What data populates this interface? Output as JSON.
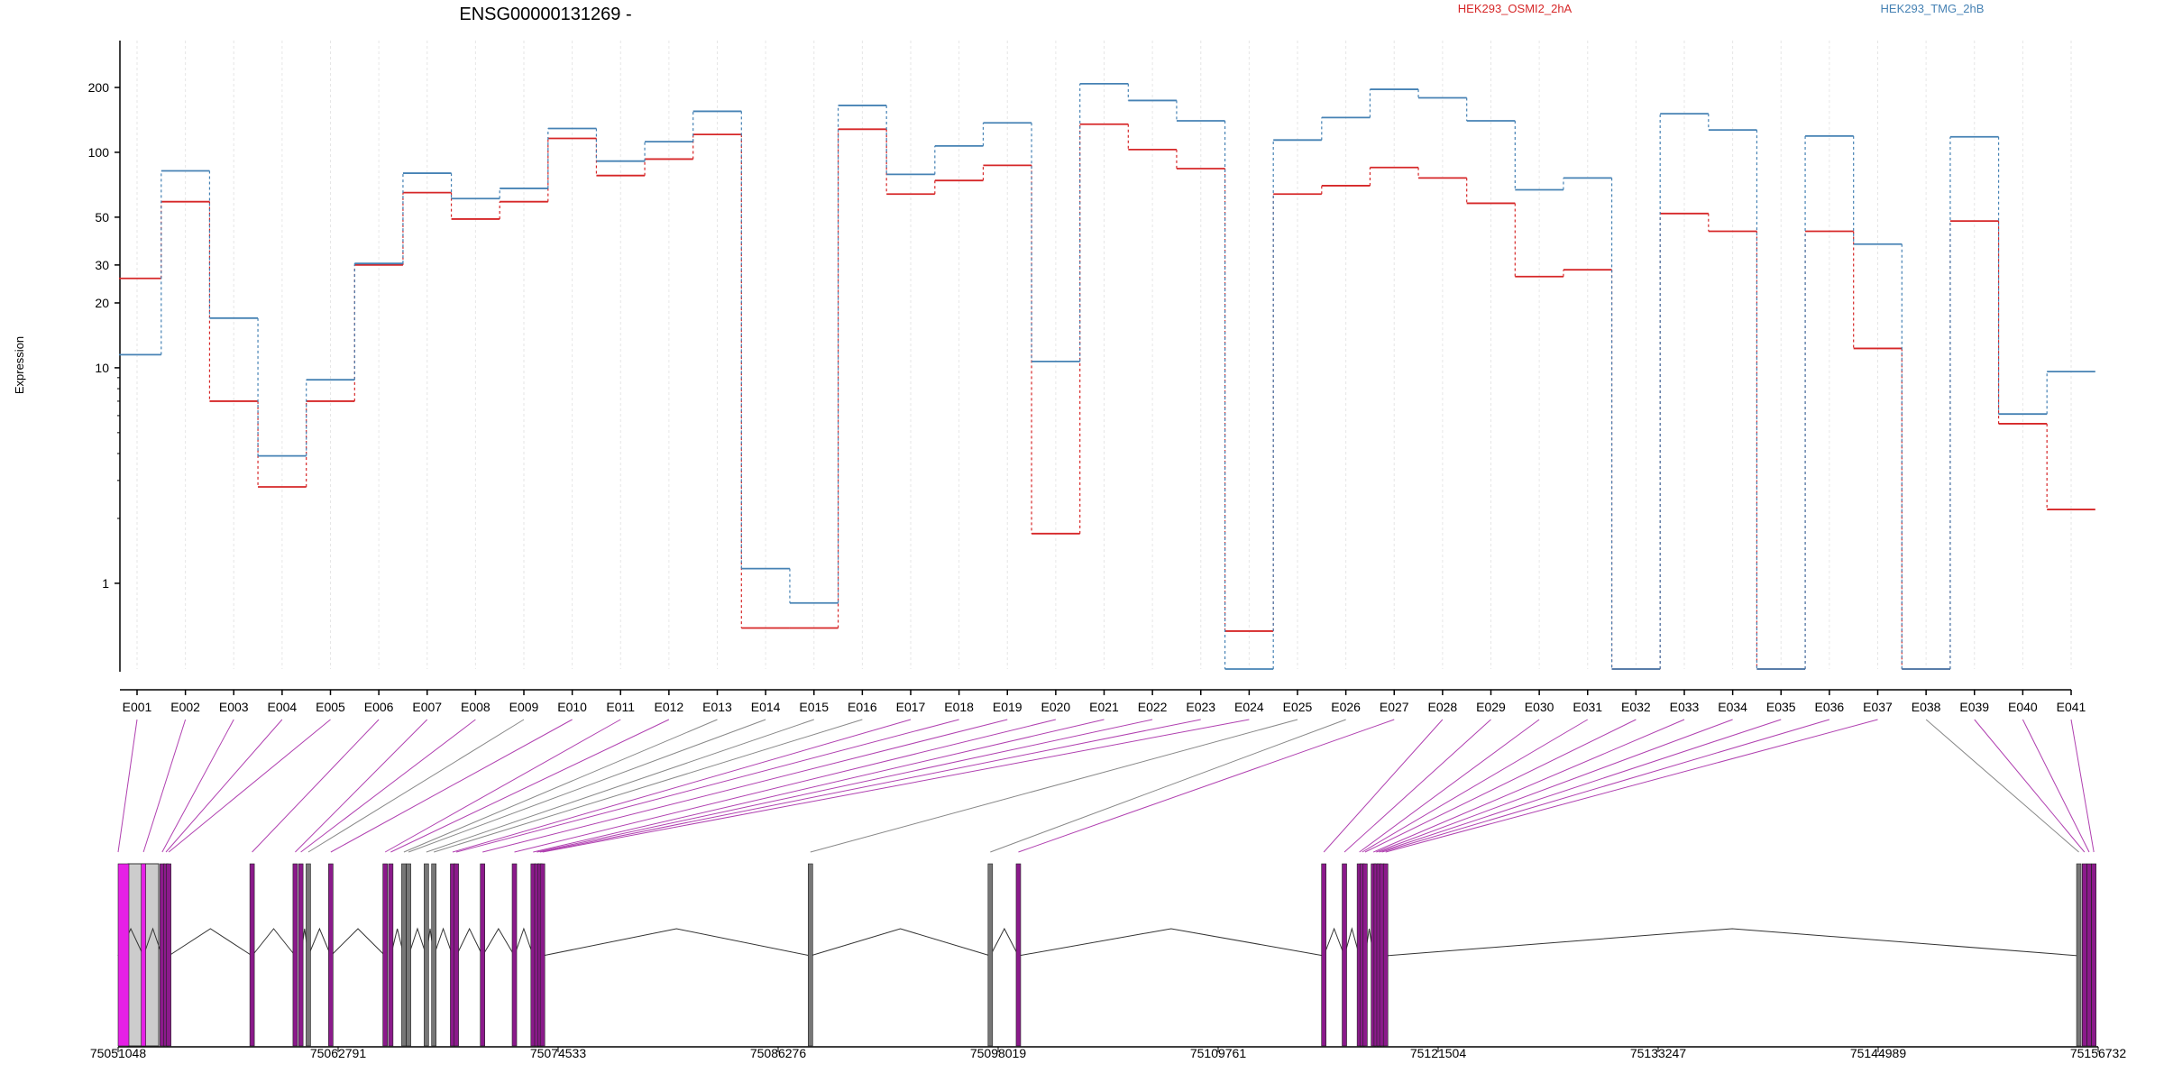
{
  "chart_data": {
    "type": "line",
    "title": "ENSG00000131269 -",
    "ylabel": "Expression",
    "xlabel": "",
    "y_scale": "log",
    "ylim": [
      0.4,
      330
    ],
    "y_ticks": [
      {
        "value": 200,
        "label": "200"
      },
      {
        "value": 100,
        "label": "100"
      },
      {
        "value": 50,
        "label": "50"
      },
      {
        "value": 30,
        "label": "30"
      },
      {
        "value": 20,
        "label": "20"
      },
      {
        "value": 10,
        "label": "10"
      },
      {
        "value": 1,
        "label": "1"
      }
    ],
    "grid": "vertical",
    "categories": [
      "E001",
      "E002",
      "E003",
      "E004",
      "E005",
      "E006",
      "E007",
      "E008",
      "E009",
      "E010",
      "E011",
      "E012",
      "E013",
      "E014",
      "E015",
      "E016",
      "E017",
      "E018",
      "E019",
      "E020",
      "E021",
      "E022",
      "E023",
      "E024",
      "E025",
      "E026",
      "E027",
      "E028",
      "E029",
      "E030",
      "E031",
      "E032",
      "E033",
      "E034",
      "E035",
      "E036",
      "E037",
      "E038",
      "E039",
      "E040",
      "E041"
    ],
    "legend_position": "top",
    "series": [
      {
        "name": "HEK293_OSMI2_2hA",
        "color": "#d62728",
        "values": [
          26,
          59,
          7.0,
          2.8,
          7.0,
          30,
          65,
          49,
          59,
          116,
          78,
          93,
          121,
          0.62,
          0.62,
          128,
          64,
          74,
          87,
          1.7,
          135,
          103,
          84,
          0.6,
          64,
          70,
          85,
          76,
          58,
          26.5,
          28.5,
          0.4,
          52,
          43,
          0.4,
          43,
          12.3,
          0.4,
          48,
          5.5,
          2.2
        ]
      },
      {
        "name": "HEK293_TMG_2hB",
        "color": "#4682b4",
        "values": [
          11.5,
          82,
          17.0,
          3.9,
          8.8,
          30.5,
          80,
          61,
          68,
          129,
          91,
          112,
          155,
          1.17,
          0.81,
          165,
          79,
          107,
          137,
          10.7,
          208,
          174,
          140,
          0.4,
          114,
          145,
          196,
          179,
          140,
          67,
          76,
          0.4,
          151,
          127,
          0.4,
          119,
          37.5,
          0.4,
          118,
          6.1,
          9.6
        ]
      }
    ],
    "genome": {
      "position_ticks": [
        "75051048",
        "75062791",
        "75074533",
        "75086276",
        "75098019",
        "75109761",
        "75121504",
        "75133247",
        "75144989",
        "75156732"
      ],
      "position_range": [
        75051048,
        75156732
      ],
      "exon_positions": [
        75051048,
        75052400,
        75053400,
        75053600,
        75053750,
        75058200,
        75060500,
        75060800,
        75061200,
        75062400,
        75065300,
        75065600,
        75066300,
        75066550,
        75067500,
        75067900,
        75068900,
        75069100,
        75070500,
        75072200,
        75073200,
        75073400,
        75073560,
        75073700,
        75088000,
        75097600,
        75099100,
        75115400,
        75116500,
        75117300,
        75117450,
        75117600,
        75118050,
        75118200,
        75118350,
        75118500,
        75118700,
        75155700,
        75156000,
        75156250,
        75156500
      ],
      "exon_colors": [
        "#e620e6",
        "#e620e6",
        "#8b1a8b",
        "#8b1a8b",
        "#8b1a8b",
        "#8b1a8b",
        "#8b1a8b",
        "#8b1a8b",
        "#777777",
        "#8b1a8b",
        "#8b1a8b",
        "#8b1a8b",
        "#777777",
        "#777777",
        "#777777",
        "#777777",
        "#8b1a8b",
        "#8b1a8b",
        "#8b1a8b",
        "#8b1a8b",
        "#8b1a8b",
        "#8b1a8b",
        "#8b1a8b",
        "#8b1a8b",
        "#777777",
        "#777777",
        "#8b1a8b",
        "#8b1a8b",
        "#8b1a8b",
        "#8b1a8b",
        "#8b1a8b",
        "#8b1a8b",
        "#8b1a8b",
        "#8b1a8b",
        "#8b1a8b",
        "#8b1a8b",
        "#8b1a8b",
        "#777777",
        "#8b1a8b",
        "#8b1a8b",
        "#8b1a8b"
      ]
    }
  }
}
